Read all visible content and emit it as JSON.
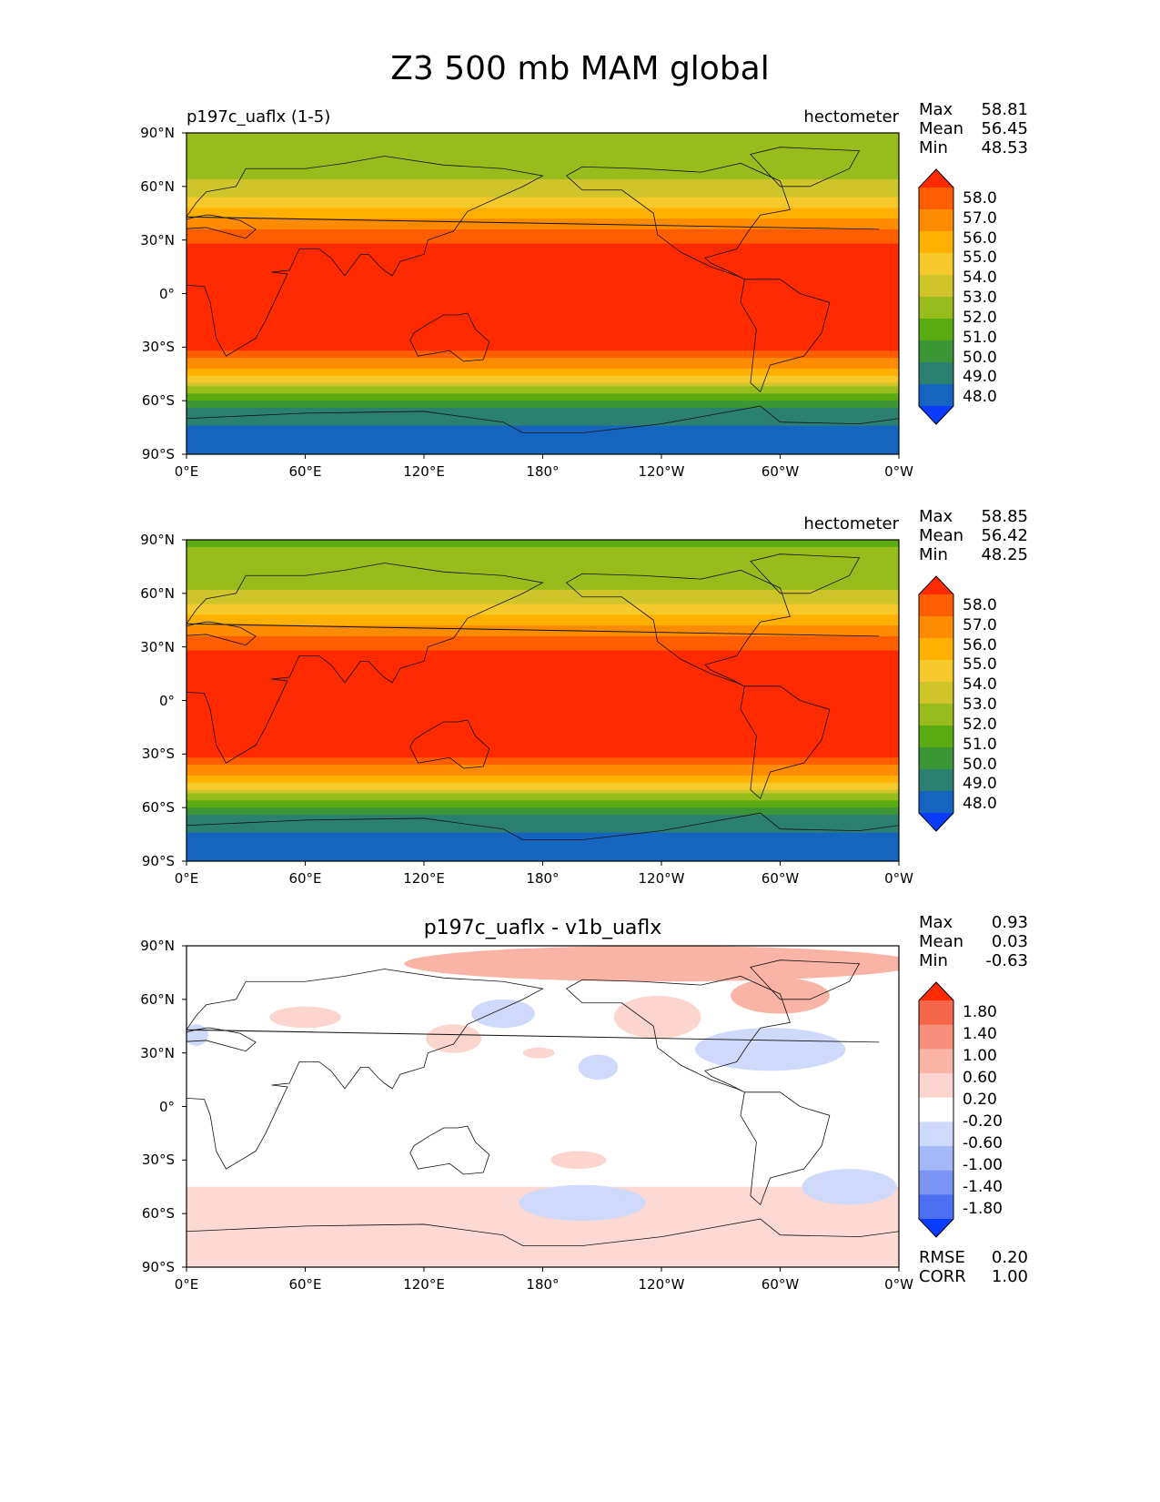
{
  "figure_title": "Z3 500 mb MAM global",
  "chart_data": [
    {
      "type": "heatmap",
      "panel": "test",
      "left_title": "p197c_uaflx (1-5)",
      "center_title": "",
      "units": "hectometer",
      "stats": {
        "max_label": "Max",
        "max": "58.81",
        "mean_label": "Mean",
        "mean": "56.45",
        "min_label": "Min",
        "min": "48.53"
      },
      "x_ticks": [
        "0°E",
        "60°E",
        "120°E",
        "180°",
        "120°W",
        "60°W",
        "0°W"
      ],
      "y_ticks": [
        "90°N",
        "60°N",
        "30°N",
        "0°",
        "30°S",
        "60°S",
        "90°S"
      ],
      "xlim": [
        0,
        360
      ],
      "ylim": [
        -90,
        90
      ],
      "colorbar_levels": [
        "58.0",
        "57.0",
        "56.0",
        "55.0",
        "54.0",
        "53.0",
        "52.0",
        "51.0",
        "50.0",
        "49.0",
        "48.0"
      ],
      "colorbar_colors": [
        "#ff2a00",
        "#ff5e00",
        "#ff8c00",
        "#ffb000",
        "#f5c92b",
        "#cfc42a",
        "#98bc1c",
        "#5aab12",
        "#3d9636",
        "#2c8070",
        "#1565c0",
        "#0a3cff"
      ],
      "latitude_profile": [
        [
          90,
          52.6
        ],
        [
          75,
          52.6
        ],
        [
          60,
          53.2
        ],
        [
          50,
          54.6
        ],
        [
          40,
          56.4
        ],
        [
          30,
          57.7
        ],
        [
          25,
          58.3
        ],
        [
          0,
          58.6
        ],
        [
          -30,
          58.4
        ],
        [
          -35,
          57.2
        ],
        [
          -45,
          55.4
        ],
        [
          -55,
          52.3
        ],
        [
          -65,
          50.0
        ],
        [
          -75,
          49.0
        ],
        [
          -90,
          48.6
        ]
      ]
    },
    {
      "type": "heatmap",
      "panel": "reference",
      "left_title": "",
      "center_title": "",
      "units": "hectometer",
      "stats": {
        "max_label": "Max",
        "max": "58.85",
        "mean_label": "Mean",
        "mean": "56.42",
        "min_label": "Min",
        "min": "48.25"
      },
      "x_ticks": [
        "0°E",
        "60°E",
        "120°E",
        "180°",
        "120°W",
        "60°W",
        "0°W"
      ],
      "y_ticks": [
        "90°N",
        "60°N",
        "30°N",
        "0°",
        "30°S",
        "60°S",
        "90°S"
      ],
      "xlim": [
        0,
        360
      ],
      "ylim": [
        -90,
        90
      ],
      "colorbar_levels": [
        "58.0",
        "57.0",
        "56.0",
        "55.0",
        "54.0",
        "53.0",
        "52.0",
        "51.0",
        "50.0",
        "49.0",
        "48.0"
      ],
      "colorbar_colors": [
        "#ff2a00",
        "#ff5e00",
        "#ff8c00",
        "#ffb000",
        "#f5c92b",
        "#cfc42a",
        "#98bc1c",
        "#5aab12",
        "#3d9636",
        "#2c8070",
        "#1565c0",
        "#0a3cff"
      ],
      "latitude_profile": [
        [
          90,
          51.9
        ],
        [
          75,
          52.3
        ],
        [
          60,
          53.1
        ],
        [
          50,
          54.6
        ],
        [
          40,
          56.4
        ],
        [
          30,
          57.7
        ],
        [
          25,
          58.3
        ],
        [
          0,
          58.6
        ],
        [
          -30,
          58.4
        ],
        [
          -35,
          57.2
        ],
        [
          -45,
          55.4
        ],
        [
          -55,
          52.2
        ],
        [
          -65,
          49.9
        ],
        [
          -75,
          48.8
        ],
        [
          -90,
          48.4
        ]
      ]
    },
    {
      "type": "heatmap",
      "panel": "difference",
      "left_title": "",
      "center_title": "p197c_uaflx - v1b_uaflx",
      "units": "",
      "stats": {
        "max_label": "Max",
        "max": "0.93",
        "mean_label": "Mean",
        "mean": "0.03",
        "min_label": "Min",
        "min": "-0.63"
      },
      "extra_stats": {
        "rmse_label": "RMSE",
        "rmse": "0.20",
        "corr_label": "CORR",
        "corr": "1.00"
      },
      "x_ticks": [
        "0°E",
        "60°E",
        "120°E",
        "180°",
        "120°W",
        "60°W",
        "0°W"
      ],
      "y_ticks": [
        "90°N",
        "60°N",
        "30°N",
        "0°",
        "30°S",
        "60°S",
        "90°S"
      ],
      "xlim": [
        0,
        360
      ],
      "ylim": [
        -90,
        90
      ],
      "colorbar_levels": [
        "1.80",
        "1.40",
        "1.00",
        "0.60",
        "0.20",
        "-0.20",
        "-0.60",
        "-1.00",
        "-1.40",
        "-1.80"
      ],
      "colorbar_colors": [
        "#ff2a00",
        "#f5664a",
        "#f78f7c",
        "#fab4a6",
        "#fdd5cf",
        "#ffffff",
        "#cfd9fb",
        "#a4b7f7",
        "#7a95f4",
        "#4d70f2",
        "#0a3cff"
      ],
      "anomalies": [
        {
          "lon": 240,
          "lat": 80,
          "value": 0.7,
          "rlon": 130,
          "rlat": 10
        },
        {
          "lon": 300,
          "lat": 62,
          "value": 0.6,
          "rlon": 25,
          "rlat": 10
        },
        {
          "lon": 238,
          "lat": 50,
          "value": 0.5,
          "rlon": 22,
          "rlat": 12
        },
        {
          "lon": 60,
          "lat": 50,
          "value": 0.4,
          "rlon": 18,
          "rlat": 6
        },
        {
          "lon": 135,
          "lat": 38,
          "value": 0.4,
          "rlon": 14,
          "rlat": 8
        },
        {
          "lon": 178,
          "lat": 30,
          "value": 0.3,
          "rlon": 8,
          "rlat": 3
        },
        {
          "lon": 160,
          "lat": 52,
          "value": -0.3,
          "rlon": 16,
          "rlat": 8
        },
        {
          "lon": 208,
          "lat": 22,
          "value": -0.3,
          "rlon": 10,
          "rlat": 7
        },
        {
          "lon": 295,
          "lat": 32,
          "value": -0.4,
          "rlon": 38,
          "rlat": 12
        },
        {
          "lon": 5,
          "lat": 40,
          "value": -0.3,
          "rlon": 6,
          "rlat": 6
        },
        {
          "lon": 198,
          "lat": -30,
          "value": 0.3,
          "rlon": 14,
          "rlat": 5
        },
        {
          "lon": 200,
          "lat": -54,
          "value": -0.4,
          "rlon": 32,
          "rlat": 10
        },
        {
          "lon": 220,
          "lat": -55,
          "value": -0.6,
          "rlon": 6,
          "rlat": 3
        },
        {
          "lon": 335,
          "lat": -45,
          "value": -0.4,
          "rlon": 24,
          "rlat": 10
        }
      ],
      "zonal_anomaly_bands": [
        [
          -45,
          -72,
          0.3
        ],
        [
          -72,
          -90,
          0.3
        ]
      ]
    }
  ]
}
